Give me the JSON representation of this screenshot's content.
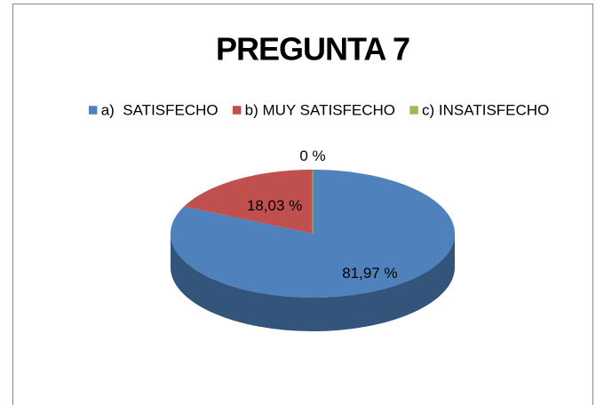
{
  "chart_data": {
    "type": "pie",
    "title": "PREGUNTA 7",
    "categories": [
      "a)  SATISFECHO",
      "b) MUY SATISFECHO",
      "c) INSATISFECHO"
    ],
    "values": [
      81.97,
      18.03,
      0
    ],
    "value_labels": [
      "81,97 %",
      "18,03 %",
      "0 %"
    ],
    "colors": [
      "#4f81bd",
      "#c0504d",
      "#9bbb59"
    ],
    "legend": "top"
  }
}
